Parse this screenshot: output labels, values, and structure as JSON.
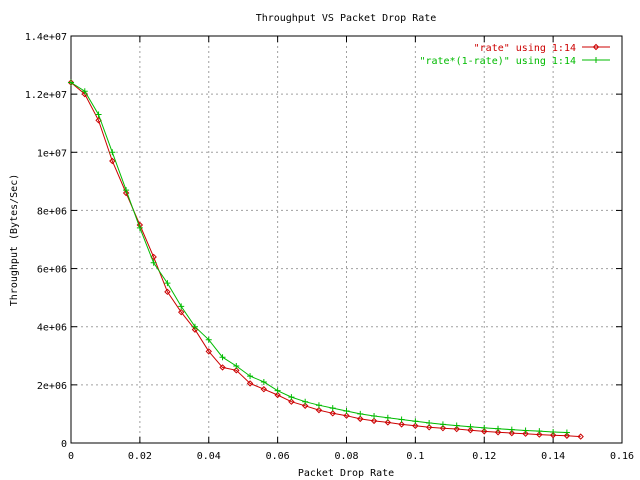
{
  "chart_data": {
    "type": "line",
    "title": "Throughput VS Packet Drop Rate",
    "xlabel": "Packet Drop Rate",
    "ylabel": "Throughput (Bytes/Sec)",
    "xlim": [
      0,
      0.16
    ],
    "ylim": [
      0,
      14000000
    ],
    "x_ticks": [
      0,
      0.02,
      0.04,
      0.06,
      0.08,
      0.1,
      0.12,
      0.14,
      0.16
    ],
    "x_tick_labels": [
      "0",
      "0.02",
      "0.04",
      "0.06",
      "0.08",
      "0.1",
      "0.12",
      "0.14",
      "0.16"
    ],
    "y_ticks": [
      0,
      2000000,
      4000000,
      6000000,
      8000000,
      10000000,
      12000000,
      14000000
    ],
    "y_tick_labels": [
      "0",
      "2e+06",
      "4e+06",
      "6e+06",
      "8e+06",
      "1e+07",
      "1.2e+07",
      "1.4e+07"
    ],
    "grid": true,
    "legend_position": "top-right",
    "series": [
      {
        "name": "\"rate\" using 1:14",
        "color": "#cc0000",
        "marker": "diamond",
        "x": [
          0.0,
          0.004,
          0.008,
          0.012,
          0.016,
          0.02,
          0.024,
          0.028,
          0.032,
          0.036,
          0.04,
          0.044,
          0.048,
          0.052,
          0.056,
          0.06,
          0.064,
          0.068,
          0.072,
          0.076,
          0.08,
          0.084,
          0.088,
          0.092,
          0.096,
          0.1,
          0.104,
          0.108,
          0.112,
          0.116,
          0.12,
          0.124,
          0.128,
          0.132,
          0.136,
          0.14,
          0.144,
          0.148
        ],
        "y": [
          12400000,
          12000000,
          11100000,
          9700000,
          8600000,
          7500000,
          6400000,
          5200000,
          4500000,
          3900000,
          3150000,
          2600000,
          2500000,
          2050000,
          1850000,
          1650000,
          1420000,
          1280000,
          1130000,
          1020000,
          940000,
          830000,
          760000,
          710000,
          640000,
          590000,
          540000,
          510000,
          480000,
          440000,
          400000,
          370000,
          340000,
          320000,
          290000,
          270000,
          250000,
          220000
        ]
      },
      {
        "name": "\"rate*(1-rate)\" using 1:14",
        "color": "#00bb00",
        "marker": "plus",
        "x": [
          0.0,
          0.004,
          0.008,
          0.012,
          0.016,
          0.02,
          0.024,
          0.028,
          0.032,
          0.036,
          0.04,
          0.044,
          0.048,
          0.052,
          0.056,
          0.06,
          0.064,
          0.068,
          0.072,
          0.076,
          0.08,
          0.084,
          0.088,
          0.092,
          0.096,
          0.1,
          0.104,
          0.108,
          0.112,
          0.116,
          0.12,
          0.124,
          0.128,
          0.132,
          0.136,
          0.14,
          0.144
        ],
        "y": [
          12400000,
          12100000,
          11300000,
          10000000,
          8700000,
          7400000,
          6200000,
          5500000,
          4700000,
          4000000,
          3550000,
          2950000,
          2650000,
          2300000,
          2100000,
          1800000,
          1580000,
          1420000,
          1300000,
          1200000,
          1100000,
          1000000,
          930000,
          870000,
          810000,
          750000,
          690000,
          640000,
          600000,
          560000,
          520000,
          490000,
          460000,
          430000,
          410000,
          380000,
          360000
        ]
      }
    ]
  }
}
